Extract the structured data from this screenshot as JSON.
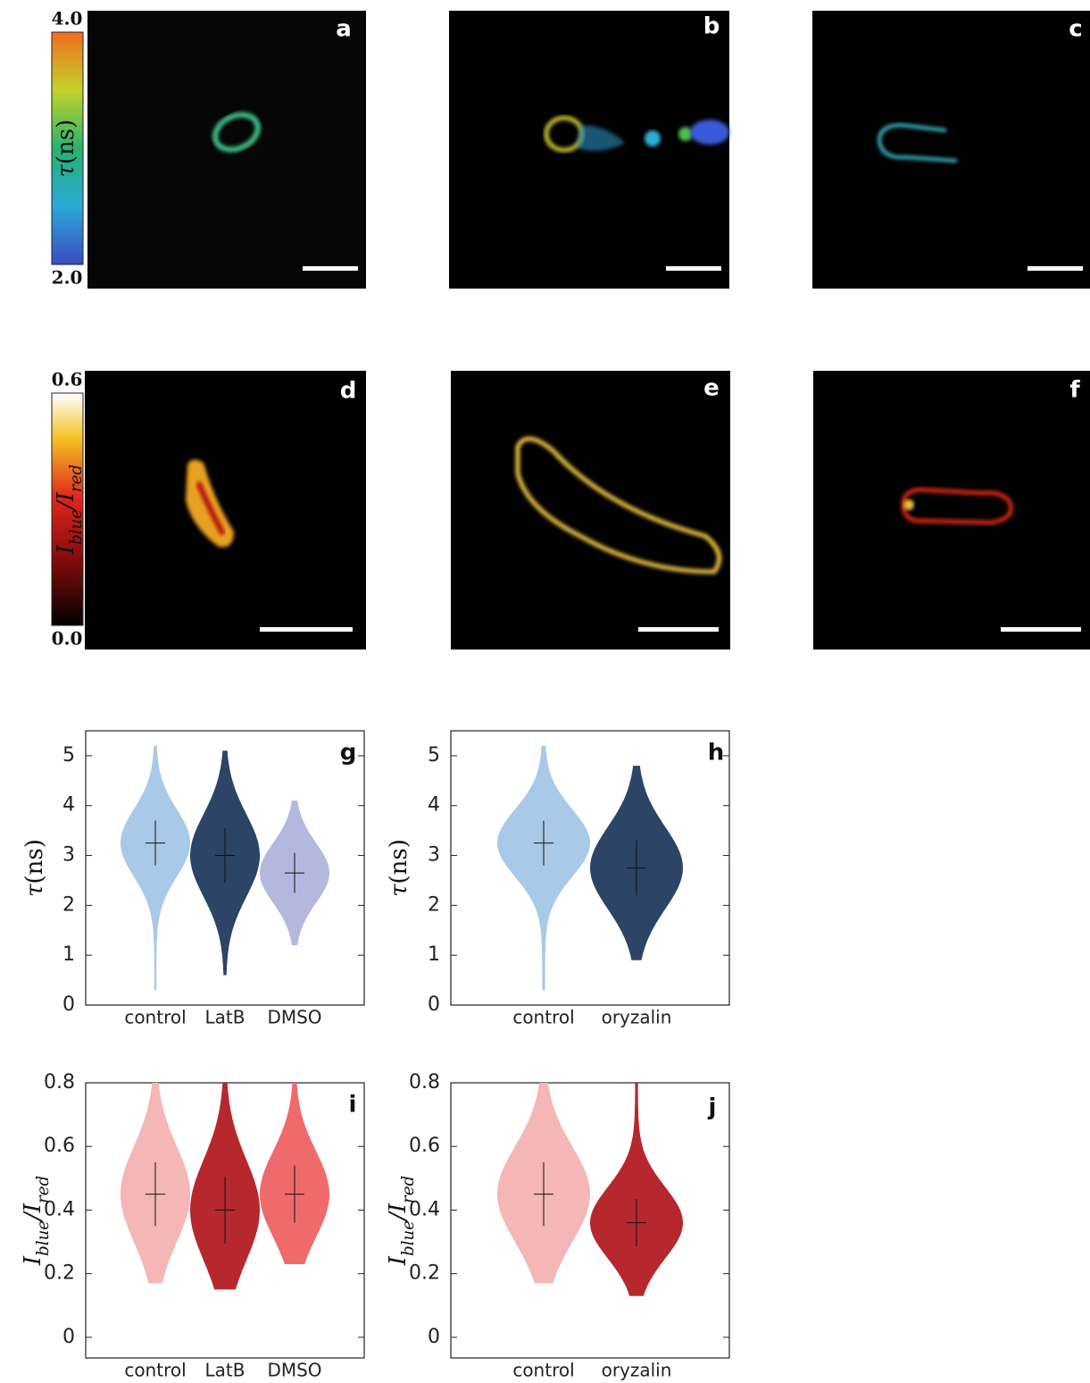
{
  "figure_images": [
    {
      "label": "a"
    },
    {
      "label": "b"
    },
    {
      "label": "c"
    },
    {
      "label": "d"
    },
    {
      "label": "e"
    },
    {
      "label": "f"
    }
  ],
  "colorbars": [
    {
      "top": "4.0",
      "bottom": "2.0",
      "label": [
        {
          "text": "τ",
          "italic": true
        },
        {
          "text": "(ns)",
          "italic": false
        }
      ]
    },
    {
      "top": "0.6",
      "bottom": "0.0",
      "label": [
        {
          "text": "I",
          "italic": true
        },
        {
          "text": "blue",
          "italic": true,
          "sub": true
        },
        {
          "text": "/I",
          "italic": true
        },
        {
          "text": "red",
          "italic": true,
          "sub": true
        }
      ]
    }
  ],
  "chart_data": [
    {
      "type": "violin",
      "label": "g",
      "ylabel": [
        {
          "text": "τ",
          "italic": true
        },
        {
          "text": "(ns)",
          "italic": false
        }
      ],
      "categories": [
        "control",
        "LatB",
        "DMSO"
      ],
      "violins": [
        {
          "color": "#a9c9e8",
          "mean": 3.25,
          "error": 0.45,
          "range": [
            0.3,
            5.2
          ]
        },
        {
          "color": "#2c4566",
          "mean": 3.0,
          "error": 0.55,
          "range": [
            0.6,
            5.1
          ]
        },
        {
          "color": "#b4b8de",
          "mean": 2.65,
          "error": 0.4,
          "range": [
            1.2,
            4.1
          ]
        }
      ],
      "ylim": [
        0,
        5.5
      ],
      "yticks": [
        0,
        1,
        2,
        3,
        4,
        5
      ]
    },
    {
      "type": "violin",
      "label": "h",
      "ylabel": [
        {
          "text": "τ",
          "italic": true
        },
        {
          "text": "(ns)",
          "italic": false
        }
      ],
      "categories": [
        "control",
        "oryzalin"
      ],
      "violins": [
        {
          "color": "#a9c9e8",
          "mean": 3.25,
          "error": 0.45,
          "range": [
            0.3,
            5.2
          ]
        },
        {
          "color": "#2c4566",
          "mean": 2.75,
          "error": 0.55,
          "range": [
            0.9,
            4.8
          ]
        }
      ],
      "ylim": [
        0,
        5.5
      ],
      "yticks": [
        0,
        1,
        2,
        3,
        4,
        5
      ]
    },
    {
      "type": "violin",
      "label": "i",
      "ylabel": [
        {
          "text": "I",
          "italic": true
        },
        {
          "text": "blue",
          "italic": true,
          "sub": true
        },
        {
          "text": "/I",
          "italic": true
        },
        {
          "text": "red",
          "italic": true,
          "sub": true
        }
      ],
      "categories": [
        "control",
        "LatB",
        "DMSO"
      ],
      "violins": [
        {
          "color": "#f4b6b6",
          "mean": 0.45,
          "error": 0.1,
          "range": [
            0.17,
            0.8
          ]
        },
        {
          "color": "#b7282e",
          "mean": 0.4,
          "error": 0.105,
          "range": [
            0.15,
            0.8
          ]
        },
        {
          "color": "#ef6b6b",
          "mean": 0.45,
          "error": 0.09,
          "range": [
            0.23,
            0.8
          ]
        }
      ],
      "ylim": [
        -0.065,
        0.8
      ],
      "yticks": [
        0,
        0.2,
        0.4,
        0.6,
        0.8
      ]
    },
    {
      "type": "violin",
      "label": "j",
      "ylabel": [
        {
          "text": "I",
          "italic": true
        },
        {
          "text": "blue",
          "italic": true,
          "sub": true
        },
        {
          "text": "/I",
          "italic": true
        },
        {
          "text": "red",
          "italic": true,
          "sub": true
        }
      ],
      "categories": [
        "control",
        "oryzalin"
      ],
      "violins": [
        {
          "color": "#f4b6b6",
          "mean": 0.45,
          "error": 0.1,
          "range": [
            0.17,
            0.8
          ]
        },
        {
          "color": "#b7282e",
          "mean": 0.36,
          "error": 0.075,
          "range": [
            0.13,
            0.8
          ]
        }
      ],
      "ylim": [
        -0.065,
        0.8
      ],
      "yticks": [
        0,
        0.2,
        0.4,
        0.6,
        0.8
      ]
    }
  ]
}
